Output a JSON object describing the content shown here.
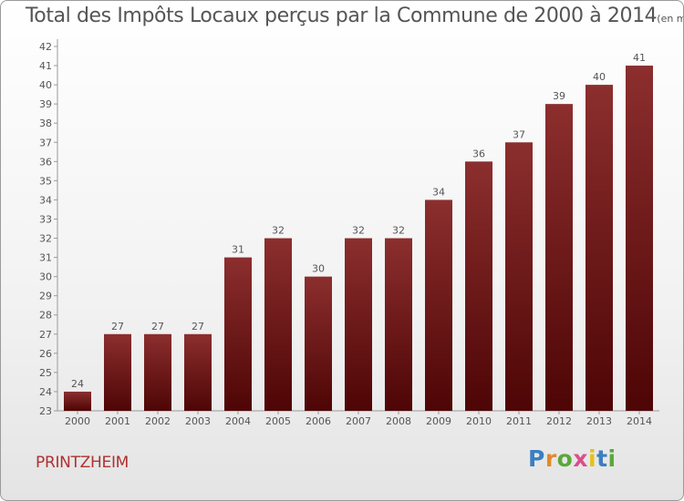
{
  "title": "Total des Impôts Locaux perçus par la Commune de 2000 à 2014",
  "title_unit": "(en milliers d'€)",
  "commune": "PRINTZHEIM",
  "logo": {
    "letters": [
      "P",
      "r",
      "o",
      "x",
      "i",
      "t",
      "i"
    ],
    "colors": [
      "#3a7fc1",
      "#e2892a",
      "#5aa83a",
      "#d94f8a",
      "#e3c21a",
      "#3a7fc1",
      "#5aa83a"
    ]
  },
  "colors": {
    "bar": "#7a1a1a",
    "bar_top": "#8a2a2a",
    "text": "#555555",
    "commune": "#b03030"
  },
  "chart_data": {
    "type": "bar",
    "title": "Total des Impôts Locaux perçus par la Commune de 2000 à 2014",
    "categories": [
      "2000",
      "2001",
      "2002",
      "2003",
      "2004",
      "2005",
      "2006",
      "2007",
      "2008",
      "2009",
      "2010",
      "2011",
      "2012",
      "2013",
      "2014"
    ],
    "values": [
      24,
      27,
      27,
      27,
      31,
      32,
      30,
      32,
      32,
      34,
      36,
      37,
      39,
      40,
      41
    ],
    "ylim": [
      23,
      42
    ],
    "yticks": [
      23,
      24,
      25,
      26,
      27,
      28,
      29,
      30,
      31,
      32,
      33,
      34,
      35,
      36,
      37,
      38,
      39,
      40,
      41,
      42
    ],
    "xlabel": "",
    "ylabel": "",
    "grid": false,
    "legend": "none"
  }
}
